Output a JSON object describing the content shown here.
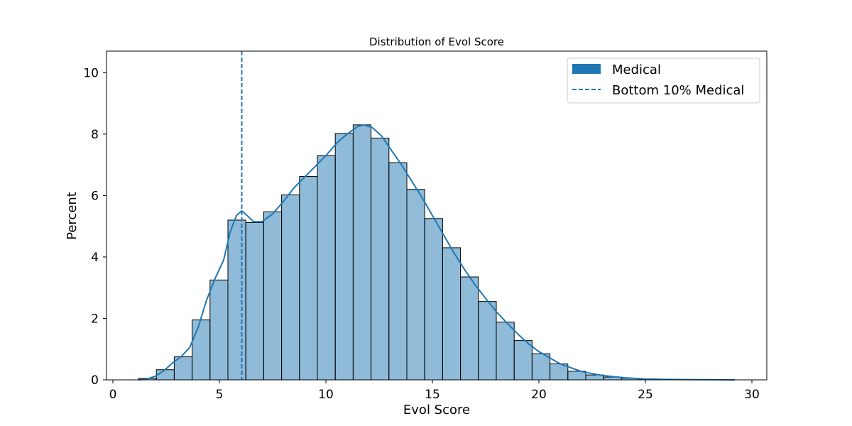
{
  "chart_data": {
    "type": "bar",
    "title": "Distribution of Evol Score",
    "xlabel": "Evol Score",
    "ylabel": "Percent",
    "xlim": [
      -0.3,
      30.7
    ],
    "ylim": [
      0,
      10.7
    ],
    "xticks": [
      0,
      5,
      10,
      15,
      20,
      25,
      30
    ],
    "yticks": [
      0,
      2,
      4,
      6,
      8,
      10
    ],
    "bar_color": "#1f77b4",
    "bins": {
      "start": 1.2,
      "width": 0.84,
      "values": [
        0.05,
        0.33,
        0.75,
        1.95,
        3.25,
        5.2,
        5.12,
        5.47,
        6.02,
        6.62,
        7.3,
        8.02,
        8.3,
        7.87,
        7.07,
        6.2,
        5.25,
        4.3,
        3.35,
        2.55,
        1.88,
        1.28,
        0.85,
        0.52,
        0.28,
        0.16,
        0.09,
        0.05,
        0.03,
        0.02,
        0.01,
        0.01,
        0.01
      ]
    },
    "kde": {
      "x": [
        1.2,
        1.6,
        2.0,
        2.4,
        2.8,
        3.2,
        3.6,
        4.0,
        4.4,
        4.8,
        5.2,
        5.5,
        5.8,
        6.05,
        6.3,
        6.6,
        7.0,
        7.5,
        8.0,
        8.5,
        9.0,
        9.5,
        10.0,
        10.5,
        11.0,
        11.5,
        11.8,
        12.2,
        12.6,
        13.0,
        13.5,
        14.0,
        14.5,
        15.0,
        15.5,
        16.0,
        16.5,
        17.0,
        17.5,
        18.0,
        18.5,
        19.0,
        19.5,
        20.0,
        21.0,
        22.0,
        23.0,
        24.0,
        25.0,
        26.0,
        27.0,
        28.0,
        29.2
      ],
      "y": [
        0.0,
        0.03,
        0.12,
        0.3,
        0.55,
        0.75,
        1.05,
        1.7,
        2.6,
        3.3,
        3.9,
        4.8,
        5.35,
        5.5,
        5.35,
        5.15,
        5.15,
        5.4,
        5.8,
        6.25,
        6.6,
        6.95,
        7.3,
        7.7,
        8.0,
        8.25,
        8.3,
        8.2,
        7.95,
        7.55,
        7.05,
        6.5,
        5.95,
        5.35,
        4.75,
        4.15,
        3.6,
        3.1,
        2.65,
        2.22,
        1.85,
        1.5,
        1.18,
        0.92,
        0.52,
        0.27,
        0.14,
        0.07,
        0.03,
        0.015,
        0.01,
        0.005,
        0.0
      ]
    },
    "vline": {
      "x": 6.05,
      "style": "dashed",
      "label": "Bottom 10% Medical"
    },
    "legend": {
      "placement": "top-right",
      "entries": [
        {
          "label": "Medical",
          "kind": "patch"
        },
        {
          "label": "Bottom 10% Medical",
          "kind": "dashed-line"
        }
      ]
    }
  }
}
